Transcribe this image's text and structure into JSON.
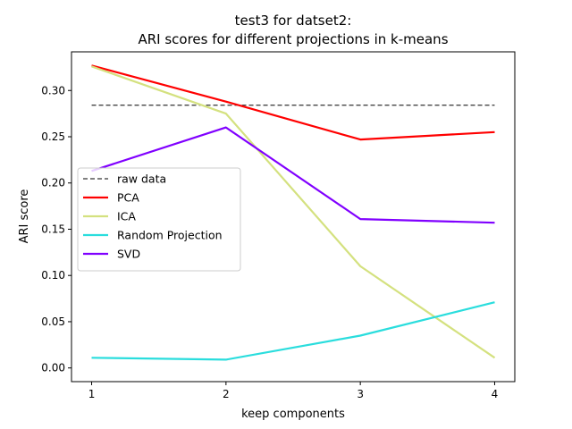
{
  "chart_data": {
    "type": "line",
    "title_line1": "test3 for datset2:",
    "title_line2": "ARI scores for different projections in k-means",
    "xlabel": "keep components",
    "ylabel": "ARI score",
    "x": [
      1,
      2,
      3,
      4
    ],
    "x_ticks": [
      "1",
      "2",
      "3",
      "4"
    ],
    "xlim": [
      0.85,
      4.15
    ],
    "ylim": [
      -0.0148,
      0.3418
    ],
    "y_ticks": [
      0.0,
      0.05,
      0.1,
      0.15,
      0.2,
      0.25,
      0.3
    ],
    "y_tick_labels": [
      "0.00",
      "0.05",
      "0.10",
      "0.15",
      "0.20",
      "0.25",
      "0.30"
    ],
    "grid": false,
    "legend_placement": "center-left",
    "baseline": {
      "name": "raw data",
      "value": 0.284,
      "color": "#000000",
      "style": "dashed"
    },
    "series": [
      {
        "name": "PCA",
        "color": "#ff0000",
        "values": [
          0.327,
          0.288,
          0.247,
          0.255
        ]
      },
      {
        "name": "ICA",
        "color": "#d4e17f",
        "values": [
          0.326,
          0.275,
          0.11,
          0.011
        ]
      },
      {
        "name": "Random Projection",
        "color": "#2adddd",
        "values": [
          0.011,
          0.009,
          0.035,
          0.071
        ]
      },
      {
        "name": "SVD",
        "color": "#8000ff",
        "values": [
          0.213,
          0.26,
          0.161,
          0.157
        ]
      }
    ]
  }
}
